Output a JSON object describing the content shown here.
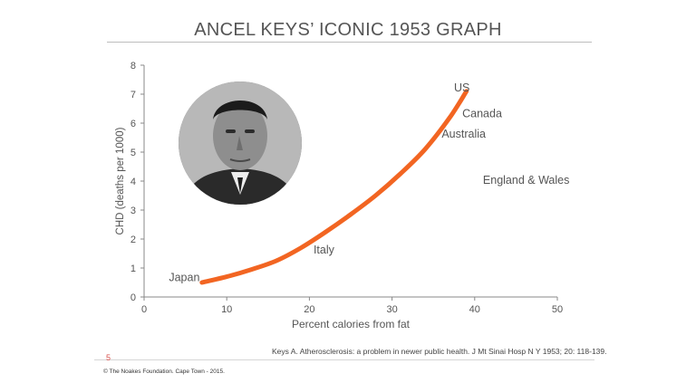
{
  "slide": {
    "title": "ANCEL KEYS’ ICONIC 1953 GRAPH",
    "citation": "Keys A. Atherosclerosis: a problem in newer public health. J Mt Sinai Hosp N Y 1953; 20: 118-139.",
    "slide_number": "5",
    "copyright": "© The Noakes Foundation. Cape Town - 2015."
  },
  "chart_data": {
    "type": "line",
    "title": "",
    "xlabel": "Percent calories from fat",
    "ylabel": "CHD (deaths per 1000)",
    "xlim": [
      0,
      50
    ],
    "ylim": [
      0,
      8
    ],
    "x_ticks": [
      "0",
      "10",
      "20",
      "30",
      "40",
      "50"
    ],
    "y_ticks": [
      "0",
      "1",
      "2",
      "3",
      "4",
      "5",
      "6",
      "7",
      "8"
    ],
    "grid": false,
    "series_color": "#f26522",
    "series": [
      {
        "x": [
          7,
          10,
          13,
          16,
          19,
          22,
          25,
          28,
          31,
          34,
          37,
          39
        ],
        "y": [
          0.5,
          0.7,
          0.95,
          1.25,
          1.7,
          2.25,
          2.85,
          3.5,
          4.25,
          5.1,
          6.2,
          7.1
        ]
      }
    ],
    "annotations": [
      {
        "text": "Japan",
        "x": 3,
        "y": 0.55
      },
      {
        "text": "Italy",
        "x": 20.5,
        "y": 1.5
      },
      {
        "text": "England & Wales",
        "x": 41,
        "y": 3.9
      },
      {
        "text": "Australia",
        "x": 36,
        "y": 5.5
      },
      {
        "text": "Canada",
        "x": 38.5,
        "y": 6.2
      },
      {
        "text": "US",
        "x": 37.5,
        "y": 7.1
      }
    ],
    "inset_image": "portrait-photo"
  }
}
